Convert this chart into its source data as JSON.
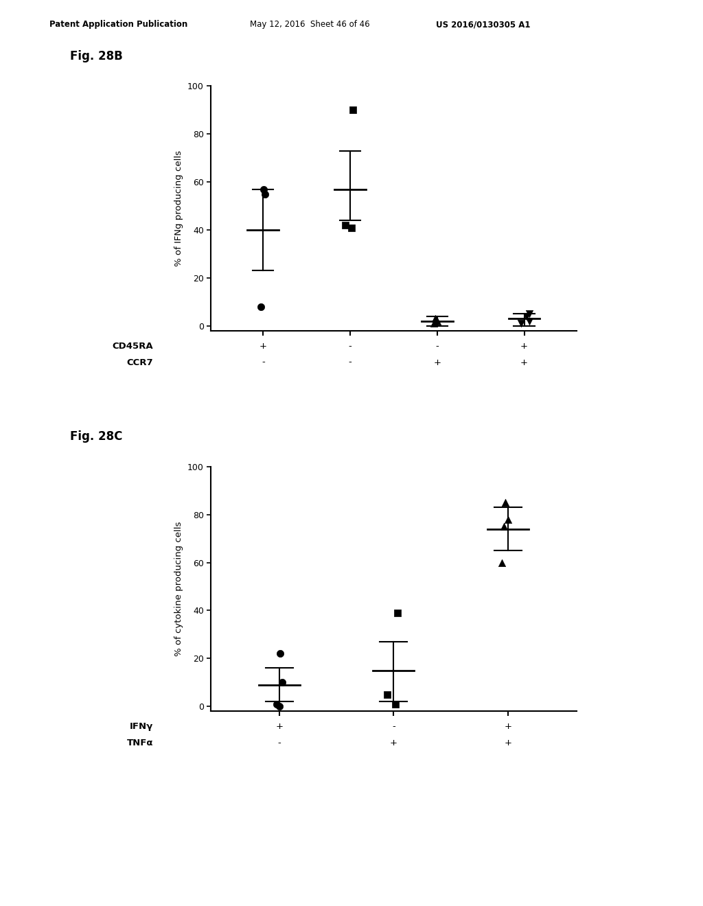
{
  "fig28b": {
    "title": "Fig. 28B",
    "ylabel": "% of IFNg producing cells",
    "ylim": [
      -2,
      100
    ],
    "yticks": [
      0,
      20,
      40,
      60,
      80,
      100
    ],
    "yticklabels": [
      "0",
      "20",
      "40",
      "60",
      "80",
      "100"
    ],
    "row1_label": "CD45RA",
    "row2_label": "CCR7",
    "cd45ra_labels": [
      "+",
      "-",
      "-",
      "+"
    ],
    "ccr7_labels": [
      "-",
      "-",
      "+",
      "+"
    ],
    "groups": [
      "1",
      "2",
      "3",
      "4"
    ],
    "data": {
      "1": {
        "points": [
          57,
          55,
          8
        ],
        "mean": 40,
        "err_low": 17,
        "err_high": 17,
        "marker": "o"
      },
      "2": {
        "points": [
          90,
          42,
          41
        ],
        "mean": 57,
        "err_low": 13,
        "err_high": 16,
        "marker": "s"
      },
      "3": {
        "points": [
          3,
          2,
          1
        ],
        "mean": 2,
        "err_low": 2,
        "err_high": 2,
        "marker": "^"
      },
      "4": {
        "points": [
          5,
          4,
          2,
          1
        ],
        "mean": 3,
        "err_low": 3,
        "err_high": 2,
        "marker": "v"
      }
    }
  },
  "fig28c": {
    "title": "Fig. 28C",
    "ylabel": "% of cytokine producing cells",
    "ylim": [
      -2,
      100
    ],
    "yticks": [
      0,
      20,
      40,
      60,
      80,
      100
    ],
    "yticklabels": [
      "0",
      "20",
      "40",
      "60",
      "80",
      "100"
    ],
    "row1_label": "IFNγ",
    "row2_label": "TNFα",
    "ifng_labels": [
      "+",
      "-",
      "+"
    ],
    "tnfa_labels": [
      "-",
      "+",
      "+"
    ],
    "groups": [
      "1",
      "2",
      "3"
    ],
    "data": {
      "1": {
        "points": [
          22,
          10,
          1,
          0
        ],
        "mean": 9,
        "err_low": 7,
        "err_high": 7,
        "marker": "o"
      },
      "2": {
        "points": [
          39,
          5,
          1
        ],
        "mean": 15,
        "err_low": 13,
        "err_high": 12,
        "marker": "s"
      },
      "3": {
        "points": [
          85,
          78,
          75,
          60
        ],
        "mean": 74,
        "err_low": 9,
        "err_high": 9,
        "marker": "^"
      }
    }
  },
  "header_left": "Patent Application Publication",
  "header_mid": "May 12, 2016  Sheet 46 of 46",
  "header_right": "US 2016/0130305 A1",
  "bg_color": "#ffffff",
  "line_width": 1.5,
  "marker_size": 55
}
